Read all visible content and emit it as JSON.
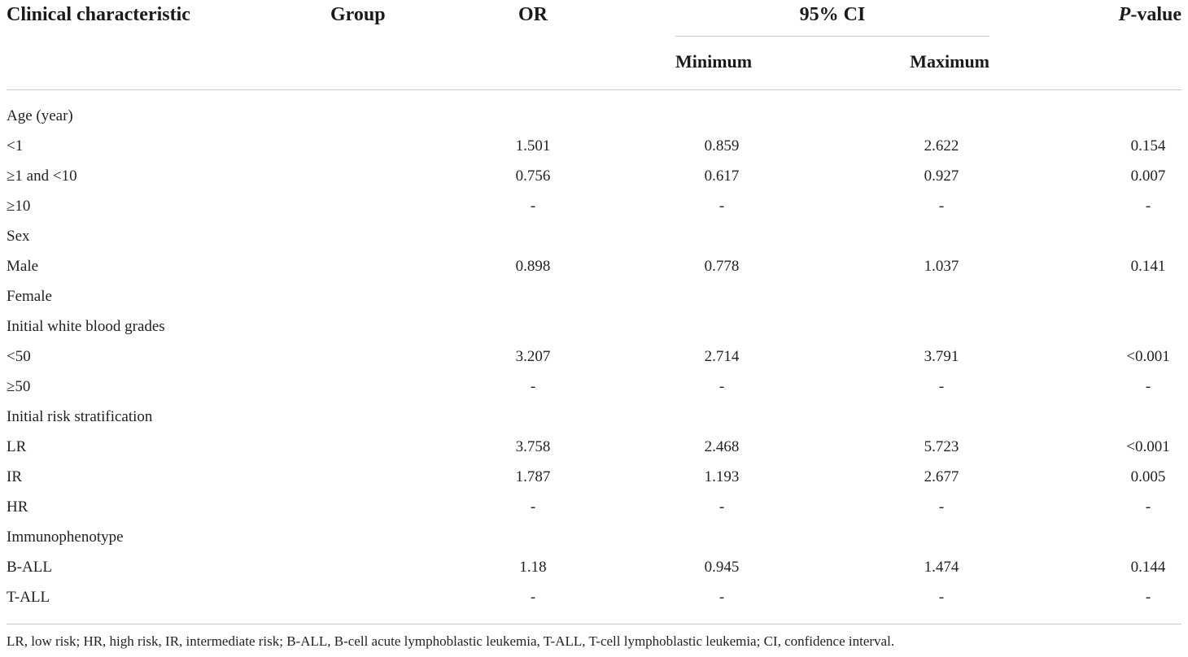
{
  "header": {
    "clinical_characteristic": "Clinical characteristic",
    "group": "Group",
    "or": "OR",
    "ci": "95% CI",
    "p_italic": "P",
    "p_rest": "-value",
    "minimum": "Minimum",
    "maximum": "Maximum"
  },
  "rows": [
    {
      "label": "Age (year)",
      "or": "",
      "min": "",
      "max": "",
      "p": ""
    },
    {
      "label": "<1",
      "or": "1.501",
      "min": "0.859",
      "max": "2.622",
      "p": "0.154"
    },
    {
      "label": "≥1 and <10",
      "or": "0.756",
      "min": "0.617",
      "max": "0.927",
      "p": "0.007"
    },
    {
      "label": "≥10",
      "or": "-",
      "min": "-",
      "max": "-",
      "p": "-"
    },
    {
      "label": "Sex",
      "or": "",
      "min": "",
      "max": "",
      "p": ""
    },
    {
      "label": "Male",
      "or": "0.898",
      "min": "0.778",
      "max": "1.037",
      "p": "0.141"
    },
    {
      "label": "Female",
      "or": "",
      "min": "",
      "max": "",
      "p": ""
    },
    {
      "label": "Initial white blood grades",
      "or": "",
      "min": "",
      "max": "",
      "p": ""
    },
    {
      "label": "<50",
      "or": "3.207",
      "min": "2.714",
      "max": "3.791",
      "p": "<0.001"
    },
    {
      "label": "≥50",
      "or": "-",
      "min": "-",
      "max": "-",
      "p": "-"
    },
    {
      "label": "Initial risk stratification",
      "or": "",
      "min": "",
      "max": "",
      "p": ""
    },
    {
      "label": "LR",
      "or": "3.758",
      "min": "2.468",
      "max": "5.723",
      "p": "<0.001"
    },
    {
      "label": "IR",
      "or": "1.787",
      "min": "1.193",
      "max": "2.677",
      "p": "0.005"
    },
    {
      "label": "HR",
      "or": "-",
      "min": "-",
      "max": "-",
      "p": "-"
    },
    {
      "label": "Immunophenotype",
      "or": "",
      "min": "",
      "max": "",
      "p": ""
    },
    {
      "label": "B-ALL",
      "or": "1.18",
      "min": "0.945",
      "max": "1.474",
      "p": "0.144"
    },
    {
      "label": "T-ALL",
      "or": "-",
      "min": "-",
      "max": "-",
      "p": "-"
    }
  ],
  "footnote": "LR, low risk; HR, high risk, IR, intermediate risk; B-ALL, B-cell acute lymphoblastic leukemia, T-ALL, T-cell lymphoblastic leukemia; CI, confidence interval."
}
